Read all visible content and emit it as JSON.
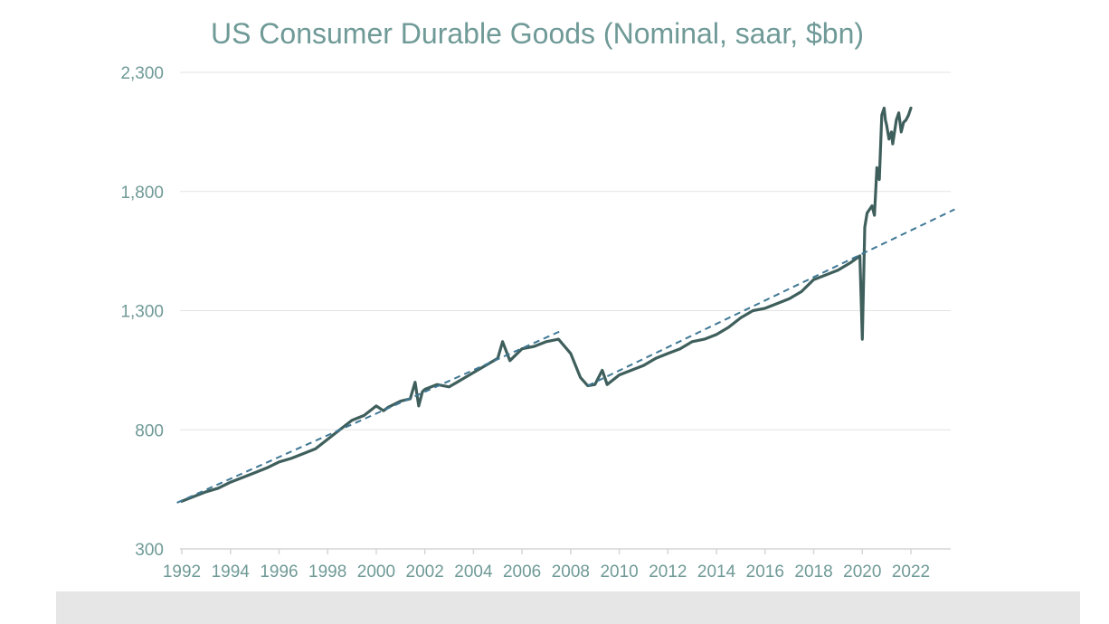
{
  "chart_data": {
    "type": "line",
    "title": "US Consumer Durable Goods (Nominal, saar, $bn)",
    "xlabel": "",
    "ylabel": "",
    "xlim": [
      1992,
      2023.8
    ],
    "ylim": [
      300,
      2300
    ],
    "yticks": [
      300,
      800,
      1300,
      1800,
      2300
    ],
    "ytick_labels": [
      "300",
      "800",
      "1,300",
      "1,800",
      "2,300"
    ],
    "xticks": [
      1992,
      1994,
      1996,
      1998,
      2000,
      2002,
      2004,
      2006,
      2008,
      2010,
      2012,
      2014,
      2016,
      2018,
      2020,
      2022
    ],
    "xtick_labels": [
      "1992",
      "1994",
      "1996",
      "1998",
      "2000",
      "2002",
      "2004",
      "2006",
      "2008",
      "2010",
      "2012",
      "2014",
      "2016",
      "2018",
      "2020",
      "2022"
    ],
    "grid": "horizontal",
    "series": [
      {
        "color": "#3f5f5c",
        "style": "solid",
        "x": [
          1992.0,
          1992.5,
          1993.0,
          1993.5,
          1994.0,
          1994.5,
          1995.0,
          1995.5,
          1996.0,
          1996.5,
          1997.0,
          1997.5,
          1998.0,
          1998.5,
          1999.0,
          1999.5,
          2000.0,
          2000.3,
          2000.5,
          2001.0,
          2001.4,
          2001.6,
          2001.75,
          2001.9,
          2002.0,
          2002.5,
          2003.0,
          2003.5,
          2004.0,
          2004.5,
          2005.0,
          2005.2,
          2005.5,
          2006.0,
          2006.5,
          2007.0,
          2007.5,
          2008.0,
          2008.4,
          2008.7,
          2009.0,
          2009.3,
          2009.5,
          2010.0,
          2010.5,
          2011.0,
          2011.5,
          2012.0,
          2012.5,
          2013.0,
          2013.5,
          2014.0,
          2014.5,
          2015.0,
          2015.5,
          2016.0,
          2016.5,
          2017.0,
          2017.5,
          2018.0,
          2018.5,
          2019.0,
          2019.5,
          2019.9,
          2020.0,
          2020.1,
          2020.2,
          2020.4,
          2020.5,
          2020.6,
          2020.7,
          2020.8,
          2020.9,
          2020.95,
          2021.0,
          2021.1,
          2021.2,
          2021.25,
          2021.4,
          2021.5,
          2021.6,
          2021.7,
          2021.8,
          2021.9,
          2022.0
        ],
        "values": [
          500,
          520,
          540,
          555,
          580,
          600,
          620,
          640,
          665,
          680,
          700,
          720,
          760,
          800,
          840,
          860,
          900,
          880,
          895,
          920,
          930,
          1000,
          900,
          960,
          970,
          990,
          980,
          1010,
          1040,
          1070,
          1100,
          1170,
          1090,
          1140,
          1150,
          1170,
          1180,
          1120,
          1020,
          985,
          990,
          1050,
          990,
          1030,
          1050,
          1070,
          1100,
          1120,
          1140,
          1170,
          1180,
          1200,
          1230,
          1270,
          1300,
          1310,
          1330,
          1350,
          1380,
          1430,
          1450,
          1470,
          1500,
          1530,
          1180,
          1650,
          1710,
          1740,
          1700,
          1900,
          1850,
          2120,
          2150,
          2100,
          2080,
          2020,
          2050,
          2000,
          2100,
          2130,
          2050,
          2090,
          2100,
          2120,
          2150
        ]
      },
      {
        "color": "#3f7896",
        "style": "dashed",
        "x": [
          1991.8,
          2007.6
        ],
        "values": [
          494,
          1215
        ]
      },
      {
        "color": "#3f7896",
        "style": "dashed",
        "x": [
          2008.7,
          2023.8
        ],
        "values": [
          985,
          1725
        ]
      }
    ]
  }
}
